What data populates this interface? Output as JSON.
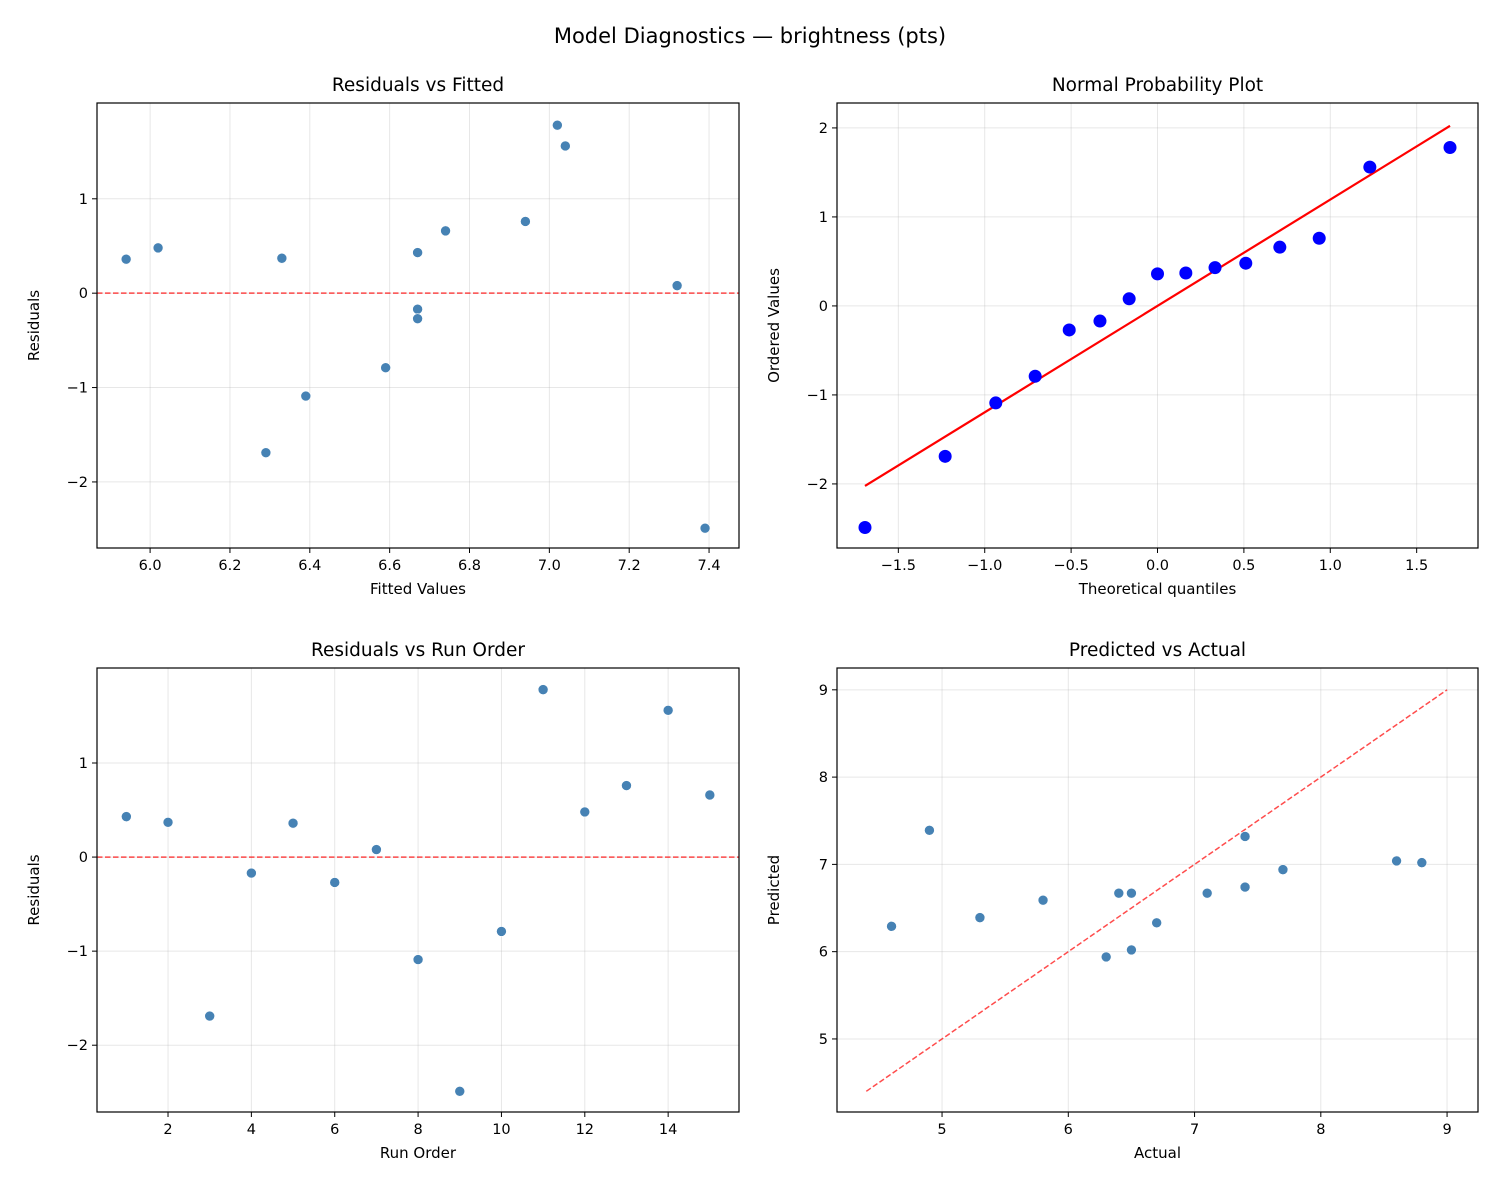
{
  "suptitle": "Model Diagnostics — brightness (pts)",
  "colors": {
    "points": "#4682b4",
    "qq_points": "#0000ff",
    "reference": "#ff0000"
  },
  "chart_data": [
    {
      "type": "scatter",
      "title": "Residuals vs Fitted",
      "xlabel": "Fitted Values",
      "ylabel": "Residuals",
      "xlim": [
        5.867,
        7.475
      ],
      "ylim": [
        -2.7,
        2.015
      ],
      "xticks": [
        6.0,
        6.2,
        6.4,
        6.6,
        6.8,
        7.0,
        7.2,
        7.4
      ],
      "xtick_labels": [
        "6.0",
        "6.2",
        "6.4",
        "6.6",
        "6.8",
        "7.0",
        "7.2",
        "7.4"
      ],
      "yticks": [
        -2,
        -1,
        0,
        1
      ],
      "ytick_labels": [
        "−2",
        "−1",
        "0",
        "1"
      ],
      "grid": true,
      "reference_line": {
        "type": "horizontal",
        "y": 0,
        "style": "dashed"
      },
      "x": [
        6.67,
        6.33,
        6.29,
        6.67,
        5.94,
        6.67,
        7.32,
        6.39,
        7.39,
        6.59,
        7.02,
        6.02,
        6.94,
        7.04,
        6.74
      ],
      "y": [
        0.43,
        0.37,
        -1.69,
        -0.17,
        0.36,
        -0.27,
        0.08,
        -1.09,
        -2.49,
        -0.79,
        1.78,
        0.48,
        0.76,
        1.56,
        0.66
      ]
    },
    {
      "type": "scatter",
      "title": "Normal Probability Plot",
      "xlabel": "Theoretical quantiles",
      "ylabel": "Ordered Values",
      "xlim": [
        -1.855,
        1.855
      ],
      "ylim": [
        -2.72,
        2.28
      ],
      "xticks": [
        -1.5,
        -1.0,
        -0.5,
        0.0,
        0.5,
        1.0,
        1.5
      ],
      "xtick_labels": [
        "−1.5",
        "−1.0",
        "−0.5",
        "0.0",
        "0.5",
        "1.0",
        "1.5"
      ],
      "yticks": [
        -2,
        -1,
        0,
        1,
        2
      ],
      "ytick_labels": [
        "−2",
        "−1",
        "0",
        "1",
        "2"
      ],
      "grid": true,
      "fit_line": {
        "slope": 1.195,
        "intercept": 0.0,
        "style": "solid"
      },
      "x": [
        -1.693,
        -1.229,
        -0.936,
        -0.708,
        -0.511,
        -0.333,
        -0.164,
        0.0,
        0.164,
        0.333,
        0.511,
        0.708,
        0.936,
        1.229,
        1.693
      ],
      "y": [
        -2.49,
        -1.69,
        -1.09,
        -0.79,
        -0.27,
        -0.17,
        0.08,
        0.36,
        0.37,
        0.43,
        0.48,
        0.66,
        0.76,
        1.56,
        1.78
      ]
    },
    {
      "type": "scatter",
      "title": "Residuals vs Run Order",
      "xlabel": "Run Order",
      "ylabel": "Residuals",
      "xlim": [
        0.296,
        15.7
      ],
      "ylim": [
        -2.71,
        2.01
      ],
      "xticks": [
        2,
        4,
        6,
        8,
        10,
        12,
        14
      ],
      "xtick_labels": [
        "2",
        "4",
        "6",
        "8",
        "10",
        "12",
        "14"
      ],
      "yticks": [
        -2,
        -1,
        0,
        1
      ],
      "ytick_labels": [
        "−2",
        "−1",
        "0",
        "1"
      ],
      "grid": true,
      "reference_line": {
        "type": "horizontal",
        "y": 0,
        "style": "dashed"
      },
      "x": [
        1,
        2,
        3,
        4,
        5,
        6,
        7,
        8,
        9,
        10,
        11,
        12,
        13,
        14,
        15
      ],
      "y": [
        0.43,
        0.37,
        -1.69,
        -0.17,
        0.36,
        -0.27,
        0.08,
        -1.09,
        -2.49,
        -0.79,
        1.78,
        0.48,
        0.76,
        1.56,
        0.66
      ]
    },
    {
      "type": "scatter",
      "title": "Predicted vs Actual",
      "xlabel": "Actual",
      "ylabel": "Predicted",
      "xlim": [
        4.168,
        9.245
      ],
      "ylim": [
        4.163,
        9.25
      ],
      "xticks": [
        5,
        6,
        7,
        8,
        9
      ],
      "xtick_labels": [
        "5",
        "6",
        "7",
        "8",
        "9"
      ],
      "yticks": [
        5,
        6,
        7,
        8,
        9
      ],
      "ytick_labels": [
        "5",
        "6",
        "7",
        "8",
        "9"
      ],
      "grid": true,
      "reference_line": {
        "type": "identity",
        "from": 4.4,
        "to": 9.0,
        "style": "dashed"
      },
      "x": [
        7.1,
        6.7,
        4.6,
        6.5,
        6.3,
        6.4,
        7.4,
        5.3,
        4.9,
        5.8,
        8.8,
        6.5,
        7.7,
        8.6,
        7.4
      ],
      "y": [
        6.67,
        6.33,
        6.29,
        6.67,
        5.94,
        6.67,
        7.32,
        6.39,
        7.39,
        6.59,
        7.02,
        6.02,
        6.94,
        7.04,
        6.74
      ]
    }
  ]
}
